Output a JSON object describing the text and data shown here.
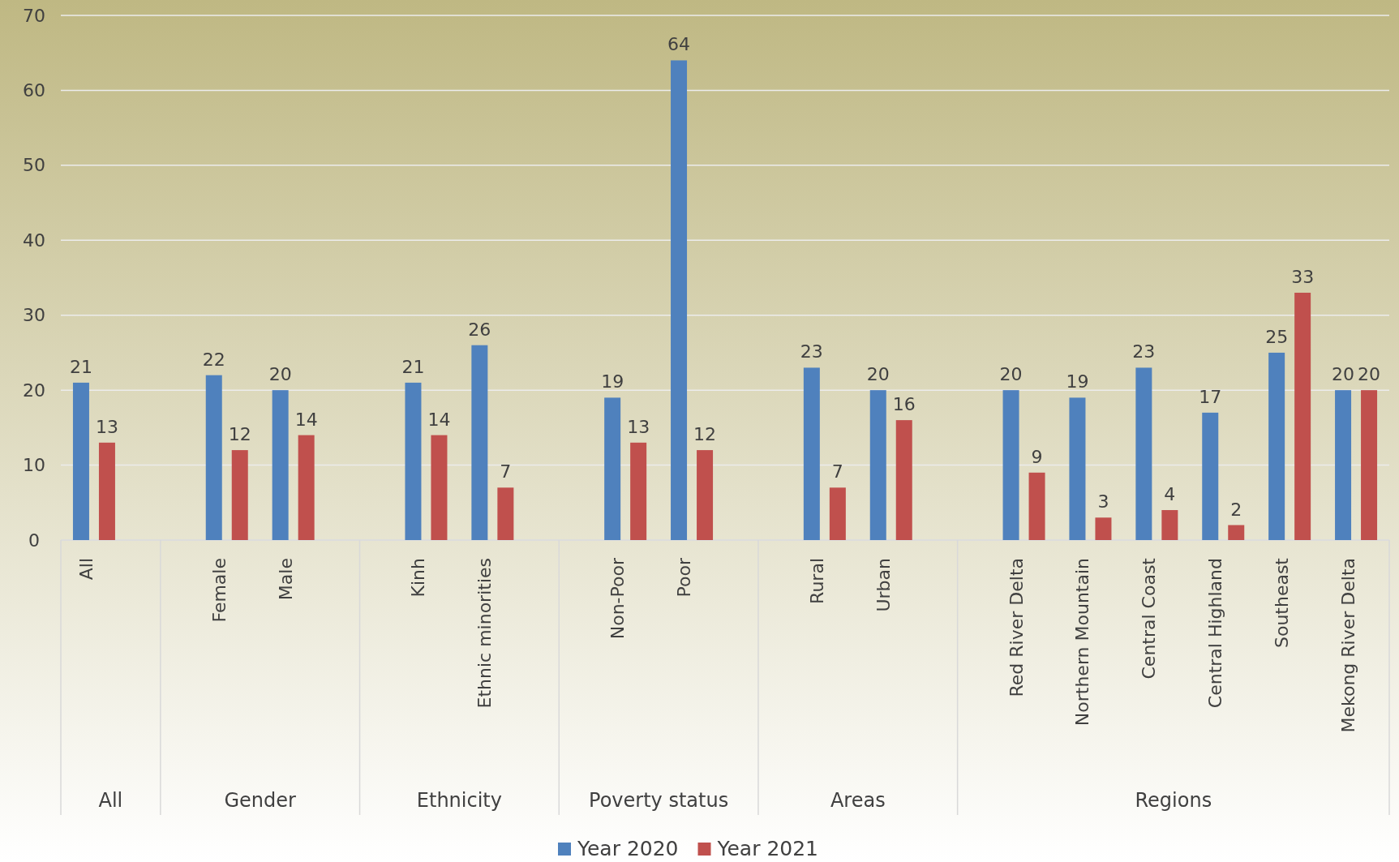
{
  "chart_data": {
    "type": "bar",
    "categories": [
      "All",
      null,
      "Female",
      "Male",
      null,
      "Kinh",
      "Ethnic minorities",
      null,
      "Non-Poor",
      "Poor",
      null,
      "Rural",
      "Urban",
      null,
      "Red River Delta",
      "Northern Mountain",
      "Central Coast",
      "Central Highland",
      "Southeast",
      "Mekong River Delta"
    ],
    "series": [
      {
        "name": "Year 2020",
        "color": "#4f81bd",
        "values": [
          21,
          null,
          22,
          20,
          null,
          21,
          26,
          null,
          19,
          64,
          null,
          23,
          20,
          null,
          20,
          19,
          23,
          17,
          25,
          20
        ]
      },
      {
        "name": "Year 2021",
        "color": "#c0504d",
        "values": [
          13,
          null,
          12,
          14,
          null,
          14,
          7,
          null,
          13,
          12,
          null,
          7,
          16,
          null,
          9,
          3,
          4,
          2,
          33,
          20
        ]
      }
    ],
    "annotations": [
      "All",
      "Gender",
      "Ethnicity",
      "Poverty status",
      "Areas",
      "Regions"
    ],
    "ylim": [
      0,
      70
    ],
    "yticks": [
      0,
      10,
      20,
      30,
      40,
      50,
      60,
      70
    ],
    "grid": "y",
    "legend": "bottom",
    "data_labels": true
  }
}
